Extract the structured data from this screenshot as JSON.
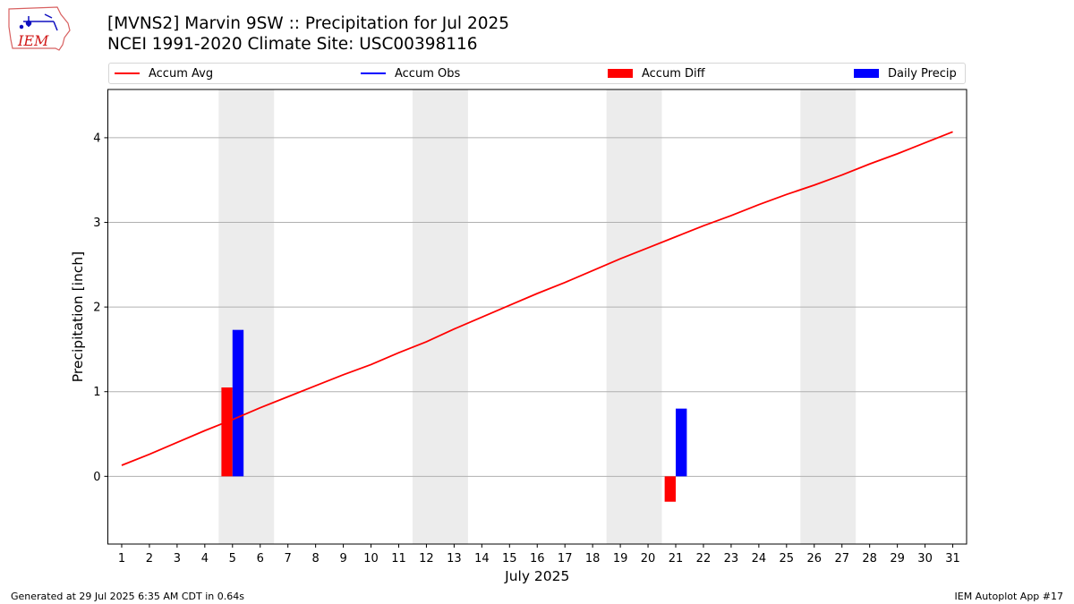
{
  "header": {
    "title_line1": "[MVNS2] Marvin 9SW :: Precipitation for Jul 2025",
    "title_line2": "NCEI 1991-2020 Climate Site: USC00398116",
    "logo_text": "IEM"
  },
  "legend": {
    "items": [
      {
        "label": "Accum Avg",
        "kind": "line",
        "color": "#ff0000"
      },
      {
        "label": "Accum Obs",
        "kind": "line",
        "color": "#0000ff"
      },
      {
        "label": "Accum Diff",
        "kind": "patch",
        "color": "#ff0000"
      },
      {
        "label": "Daily Precip",
        "kind": "patch",
        "color": "#0000ff"
      }
    ]
  },
  "footer": {
    "left": "Generated at 29 Jul 2025 6:35 AM CDT in 0.64s",
    "right": "IEM Autoplot App #17"
  },
  "chart_data": {
    "type": "bar",
    "xlabel": "July 2025",
    "ylabel": "Precipitation [inch]",
    "x": [
      1,
      2,
      3,
      4,
      5,
      6,
      7,
      8,
      9,
      10,
      11,
      12,
      13,
      14,
      15,
      16,
      17,
      18,
      19,
      20,
      21,
      22,
      23,
      24,
      25,
      26,
      27,
      28,
      29,
      30,
      31
    ],
    "xlim": [
      0.5,
      31.5
    ],
    "ylim": [
      -0.8,
      4.57
    ],
    "yticks": [
      0,
      1,
      2,
      3,
      4
    ],
    "grid": "horizontal",
    "legend_position": "top",
    "weekend_shading": [
      [
        5,
        6
      ],
      [
        12,
        13
      ],
      [
        19,
        20
      ],
      [
        26,
        27
      ]
    ],
    "series": [
      {
        "name": "Accum Avg",
        "kind": "line",
        "color": "#ff0000",
        "values": [
          0.13,
          0.26,
          0.4,
          0.54,
          0.67,
          0.81,
          0.94,
          1.07,
          1.2,
          1.32,
          1.46,
          1.59,
          1.74,
          1.88,
          2.02,
          2.16,
          2.29,
          2.43,
          2.57,
          2.7,
          2.83,
          2.96,
          3.08,
          3.21,
          3.33,
          3.44,
          3.56,
          3.69,
          3.81,
          3.94,
          4.07
        ]
      },
      {
        "name": "Accum Diff",
        "kind": "bar",
        "color": "#ff0000",
        "points": [
          {
            "x": 5,
            "value": 1.05
          },
          {
            "x": 21,
            "value": -0.3
          }
        ]
      },
      {
        "name": "Daily Precip",
        "kind": "bar",
        "color": "#0000ff",
        "points": [
          {
            "x": 5,
            "value": 1.73
          },
          {
            "x": 21,
            "value": 0.8
          }
        ]
      }
    ]
  }
}
